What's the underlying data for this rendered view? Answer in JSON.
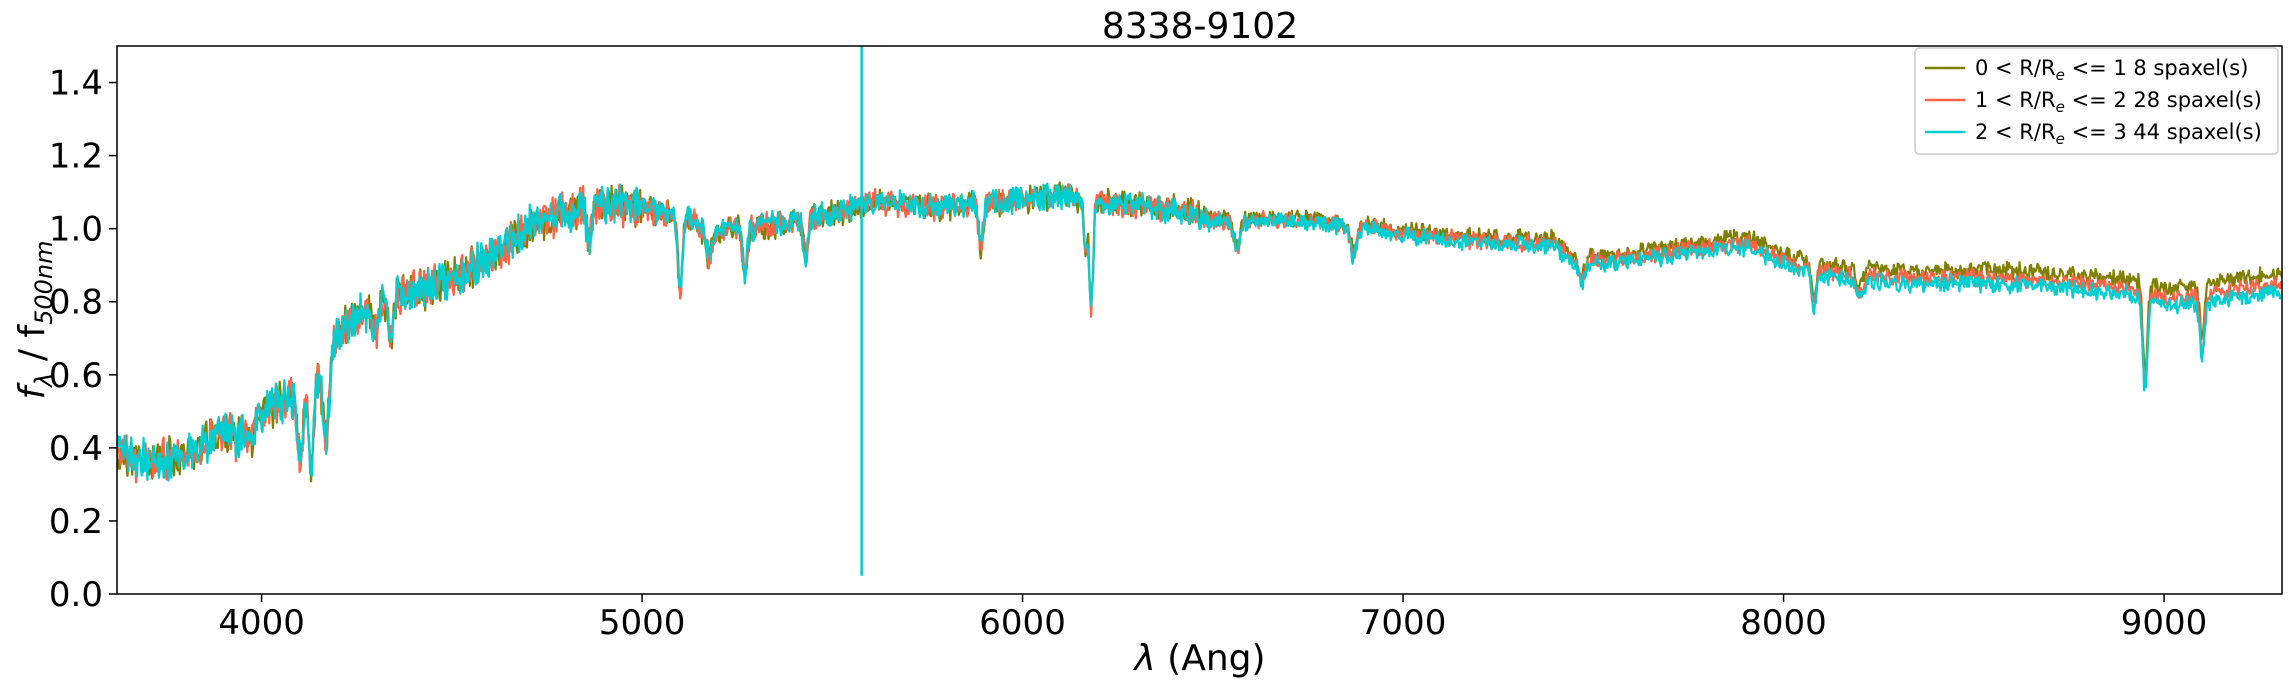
{
  "chart_data": {
    "type": "line",
    "title": "8338-9102",
    "xlabel_symbol": "λ",
    "xlabel_rest": " (Ang)",
    "ylabel_f": "f",
    "ylabel_fsub": "λ",
    "ylabel_sep": " / f",
    "ylabel_sep_sub": "500nm",
    "xlim": [
      3620,
      9310
    ],
    "ylim": [
      0.0,
      1.5
    ],
    "xticks": [
      4000,
      5000,
      6000,
      7000,
      8000,
      9000
    ],
    "yticks": [
      0.0,
      0.2,
      0.4,
      0.6,
      0.8,
      1.0,
      1.2,
      1.4
    ],
    "yticks_text": [
      "0.0",
      "0.2",
      "0.4",
      "0.6",
      "0.8",
      "1.0",
      "1.2",
      "1.4"
    ],
    "legend_position": "top-right",
    "grid": false,
    "sky_line": {
      "x": 5577,
      "ymin": 0.05,
      "ymax": 1.5
    },
    "continuum_knots": [
      [
        3620,
        0.38
      ],
      [
        3700,
        0.36
      ],
      [
        3800,
        0.38
      ],
      [
        3900,
        0.45
      ],
      [
        4000,
        0.5
      ],
      [
        4100,
        0.55
      ],
      [
        4150,
        0.6
      ],
      [
        4200,
        0.72
      ],
      [
        4300,
        0.8
      ],
      [
        4400,
        0.83
      ],
      [
        4500,
        0.86
      ],
      [
        4600,
        0.92
      ],
      [
        4700,
        1.0
      ],
      [
        4800,
        1.05
      ],
      [
        4900,
        1.07
      ],
      [
        5000,
        1.06
      ],
      [
        5100,
        1.03
      ],
      [
        5200,
        1.0
      ],
      [
        5300,
        1.0
      ],
      [
        5400,
        1.02
      ],
      [
        5500,
        1.04
      ],
      [
        5600,
        1.07
      ],
      [
        5800,
        1.06
      ],
      [
        6000,
        1.08
      ],
      [
        6100,
        1.09
      ],
      [
        6200,
        1.07
      ],
      [
        6400,
        1.05
      ],
      [
        6500,
        1.02
      ],
      [
        6700,
        1.02
      ],
      [
        6900,
        1.0
      ],
      [
        7000,
        0.98
      ],
      [
        7200,
        0.96
      ],
      [
        7400,
        0.95
      ],
      [
        7450,
        0.9
      ],
      [
        7600,
        0.91
      ],
      [
        7800,
        0.94
      ],
      [
        7900,
        0.95
      ],
      [
        8000,
        0.9
      ],
      [
        8100,
        0.87
      ],
      [
        8300,
        0.85
      ],
      [
        8500,
        0.85
      ],
      [
        8700,
        0.84
      ],
      [
        8900,
        0.82
      ],
      [
        9000,
        0.79
      ],
      [
        9100,
        0.8
      ],
      [
        9310,
        0.83
      ]
    ],
    "absorption_features": [
      [
        3934,
        0.06,
        10
      ],
      [
        3968,
        0.06,
        10
      ],
      [
        4102,
        0.18,
        8
      ],
      [
        4130,
        0.25,
        6
      ],
      [
        4170,
        0.22,
        8
      ],
      [
        4300,
        0.07,
        10
      ],
      [
        4340,
        0.12,
        6
      ],
      [
        4861,
        0.1,
        6
      ],
      [
        5100,
        0.2,
        6
      ],
      [
        5175,
        0.08,
        10
      ],
      [
        5270,
        0.12,
        6
      ],
      [
        5430,
        0.1,
        6
      ],
      [
        5890,
        0.12,
        6
      ],
      [
        6165,
        0.15,
        4
      ],
      [
        6180,
        0.3,
        5
      ],
      [
        6563,
        0.08,
        8
      ],
      [
        6870,
        0.08,
        8
      ],
      [
        7470,
        0.05,
        8
      ],
      [
        8080,
        0.1,
        6
      ],
      [
        8200,
        0.05,
        10
      ],
      [
        8950,
        0.25,
        6
      ],
      [
        9100,
        0.15,
        6
      ]
    ],
    "series": [
      {
        "name": "0 < R/Re <= 1 8 spaxel(s)",
        "label_pre": "0 < R/R",
        "label_sub": "e",
        "label_post": " <= 1 8 spaxel(s)",
        "color": "#808000",
        "offset_slope": 0.05,
        "seed": 11
      },
      {
        "name": "1 < R/Re <= 2 28 spaxel(s)",
        "label_pre": "1 < R/R",
        "label_sub": "e",
        "label_post": " <= 2 28 spaxel(s)",
        "color": "#ff6347",
        "offset_slope": 0.02,
        "seed": 23
      },
      {
        "name": "2 < R/Re <= 3 44 spaxel(s)",
        "label_pre": "2 < R/R",
        "label_sub": "e",
        "label_post": " <= 3 44 spaxel(s)",
        "color": "#00ced1",
        "offset_slope": 0.0,
        "seed": 37
      }
    ]
  }
}
